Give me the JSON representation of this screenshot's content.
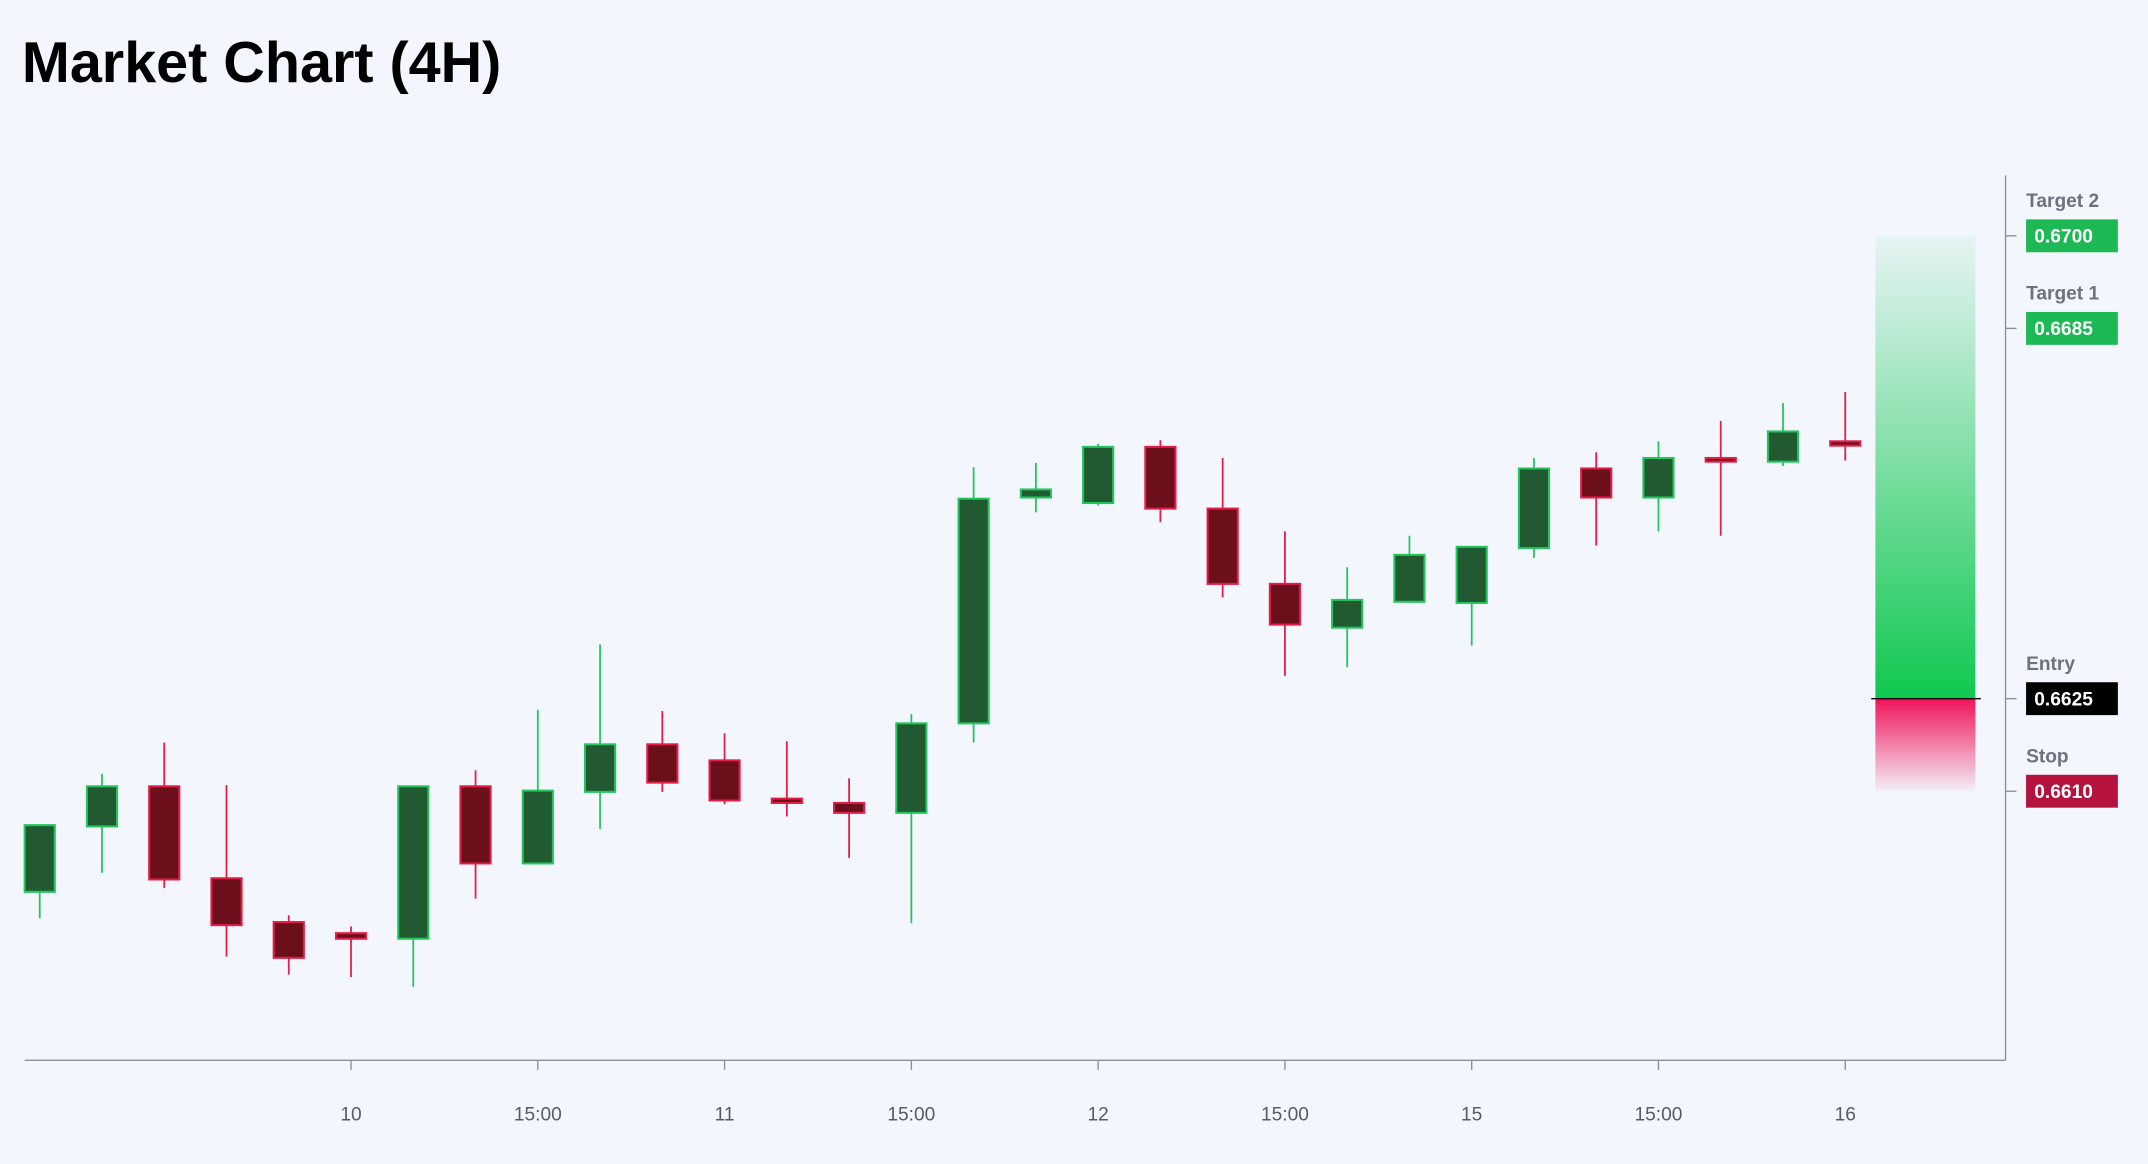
{
  "chart_data": {
    "type": "candlestick",
    "title": "Market Chart (4H)",
    "categories": [
      null,
      null,
      null,
      null,
      null,
      "10",
      null,
      null,
      "15:00",
      null,
      null,
      "11",
      null,
      null,
      "15:00",
      null,
      null,
      "12",
      null,
      null,
      "15:00",
      null,
      null,
      "15",
      null,
      null,
      "15:00",
      null,
      null,
      "16"
    ],
    "open": [
      0.65937,
      0.66043,
      0.66108,
      0.65959,
      0.65888,
      0.6587,
      0.65861,
      0.66108,
      0.65983,
      0.66099,
      0.66176,
      0.6615,
      0.66088,
      0.66081,
      0.66065,
      0.6621,
      0.66576,
      0.66567,
      0.66658,
      0.66558,
      0.66436,
      0.66365,
      0.66407,
      0.66405,
      0.66494,
      0.66623,
      0.66576,
      0.6664,
      0.66634,
      0.66667
    ],
    "high": [
      0.66045,
      0.66128,
      0.66179,
      0.6611,
      0.65899,
      0.65881,
      0.66108,
      0.66134,
      0.66232,
      0.66338,
      0.6623,
      0.66194,
      0.66181,
      0.66121,
      0.66225,
      0.66625,
      0.66632,
      0.66663,
      0.66669,
      0.6664,
      0.66521,
      0.66463,
      0.66514,
      0.66496,
      0.6664,
      0.66649,
      0.66667,
      0.667,
      0.66729,
      0.66747
    ],
    "low": [
      0.65894,
      0.65968,
      0.65943,
      0.65832,
      0.65803,
      0.65799,
      0.65783,
      0.65926,
      0.65983,
      0.66039,
      0.66099,
      0.66079,
      0.66059,
      0.65992,
      0.65886,
      0.66179,
      0.66552,
      0.66563,
      0.66536,
      0.66414,
      0.66287,
      0.66301,
      0.66407,
      0.66336,
      0.66478,
      0.66498,
      0.66521,
      0.66514,
      0.66627,
      0.66636
    ],
    "close": [
      0.66045,
      0.66108,
      0.65957,
      0.65883,
      0.6583,
      0.65861,
      0.66108,
      0.65983,
      0.66101,
      0.66176,
      0.66114,
      0.66085,
      0.66081,
      0.66065,
      0.6621,
      0.66574,
      0.66589,
      0.66658,
      0.66558,
      0.66436,
      0.6637,
      0.6641,
      0.66483,
      0.66496,
      0.66623,
      0.66576,
      0.6664,
      0.66634,
      0.66683,
      0.6666
    ],
    "up_color": "#22c55e",
    "up_fill": "#215a30",
    "down_color": "#e11d48",
    "down_fill": "#6b0f1a",
    "ylim": [
      0.65664,
      0.67098
    ],
    "levels": [
      {
        "name": "Target 2",
        "value": 0.67,
        "label": "0.6700",
        "color": "#1db954"
      },
      {
        "name": "Target 1",
        "value": 0.6685,
        "label": "0.6685",
        "color": "#1db954"
      },
      {
        "name": "Entry",
        "value": 0.6625,
        "label": "0.6625",
        "color": "#000000"
      },
      {
        "name": "Stop",
        "value": 0.661,
        "label": "0.6610",
        "color": "#b5123e"
      }
    ]
  }
}
